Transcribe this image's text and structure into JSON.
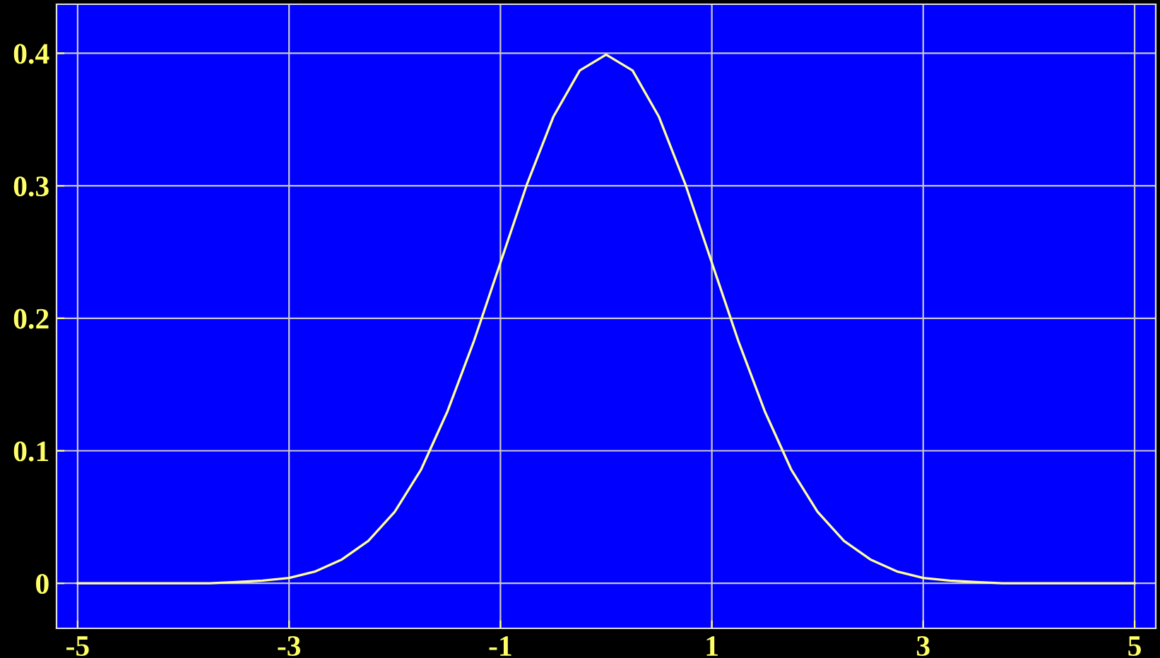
{
  "chart_data": {
    "type": "line",
    "x": [
      -5,
      -4.5,
      -4,
      -3.75,
      -3.5,
      -3.25,
      -3,
      -2.75,
      -2.5,
      -2.25,
      -2,
      -1.75,
      -1.5,
      -1.25,
      -1,
      -0.75,
      -0.5,
      -0.25,
      0,
      0.25,
      0.5,
      0.75,
      1,
      1.25,
      1.5,
      1.75,
      2,
      2.25,
      2.5,
      2.75,
      3,
      3.25,
      3.5,
      3.75,
      4,
      4.5,
      5
    ],
    "series": [
      {
        "color": "#ffff99",
        "values": [
          0,
          0,
          0,
          0,
          0.001,
          0.002,
          0.004,
          0.009,
          0.018,
          0.032,
          0.054,
          0.086,
          0.13,
          0.183,
          0.242,
          0.301,
          0.352,
          0.387,
          0.399,
          0.387,
          0.352,
          0.301,
          0.242,
          0.183,
          0.13,
          0.086,
          0.054,
          0.032,
          0.018,
          0.009,
          0.004,
          0.002,
          0.001,
          0,
          0,
          0,
          0
        ]
      }
    ],
    "xlim": [
      -5.2,
      5.2
    ],
    "ylim": [
      -0.034,
      0.437
    ],
    "xticks": [
      -5,
      -3,
      -1,
      1,
      3,
      5
    ],
    "yticks": [
      0,
      0.1,
      0.2,
      0.3,
      0.4
    ],
    "grid": true,
    "marker": "none",
    "line_style": "solid"
  }
}
